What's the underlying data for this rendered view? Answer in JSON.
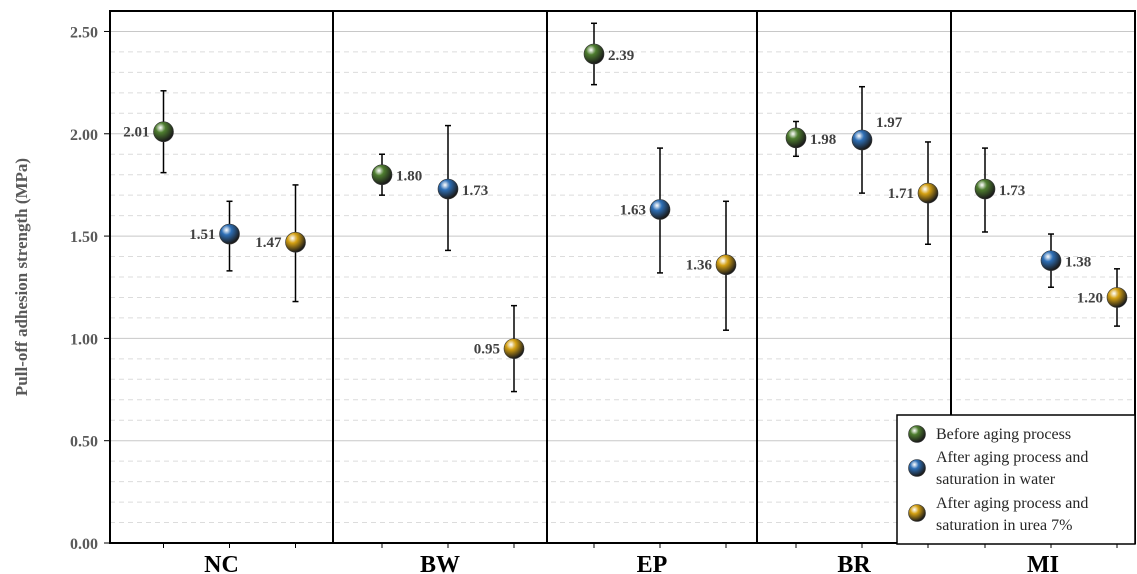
{
  "chart_data": {
    "type": "scatter",
    "ylabel": "Pull-off adhesion strength (MPa)",
    "ylim": [
      0,
      2.6
    ],
    "yticks": [
      "0.00",
      "0.50",
      "1.00",
      "1.50",
      "2.00",
      "2.50"
    ],
    "grid": true,
    "legend_position": "bottom-right",
    "categories": [
      "NC",
      "BW",
      "EP",
      "BR",
      "MI"
    ],
    "series": [
      {
        "name": "Before aging process",
        "color": "#4e7d2f",
        "values": [
          2.01,
          1.8,
          2.39,
          1.98,
          1.73
        ],
        "error_low": [
          1.81,
          1.7,
          2.24,
          1.89,
          1.52
        ],
        "error_high": [
          2.21,
          1.9,
          2.54,
          2.06,
          1.93
        ],
        "labels": [
          "2.01",
          "1.80",
          "2.39",
          "1.98",
          "1.73"
        ],
        "label_side": [
          "left",
          "right",
          "right",
          "right",
          "right"
        ]
      },
      {
        "name": "After aging process and saturation in water",
        "color": "#2e6fb6",
        "values": [
          1.51,
          1.73,
          1.63,
          1.97,
          1.38
        ],
        "error_low": [
          1.33,
          1.43,
          1.32,
          1.71,
          1.25
        ],
        "error_high": [
          1.67,
          2.04,
          1.93,
          2.23,
          1.51
        ],
        "labels": [
          "1.51",
          "1.73",
          "1.63",
          "1.97",
          "1.38"
        ],
        "label_side": [
          "left",
          "right",
          "left",
          "upper-right",
          "right"
        ]
      },
      {
        "name": "After aging process and saturation in urea 7%",
        "color": "#d4a012",
        "values": [
          1.47,
          0.95,
          1.36,
          1.71,
          1.2
        ],
        "error_low": [
          1.18,
          0.74,
          1.04,
          1.46,
          1.06
        ],
        "error_high": [
          1.75,
          1.16,
          1.67,
          1.96,
          1.34
        ],
        "labels": [
          "1.47",
          "0.95",
          "1.36",
          "1.71",
          "1.20"
        ],
        "label_side": [
          "left",
          "left",
          "left",
          "left",
          "left"
        ]
      }
    ],
    "legend": [
      {
        "lines": [
          "Before aging process"
        ]
      },
      {
        "lines": [
          "After aging process and",
          "saturation in water"
        ]
      },
      {
        "lines": [
          "After aging process and",
          "saturation in urea 7%"
        ]
      }
    ]
  }
}
